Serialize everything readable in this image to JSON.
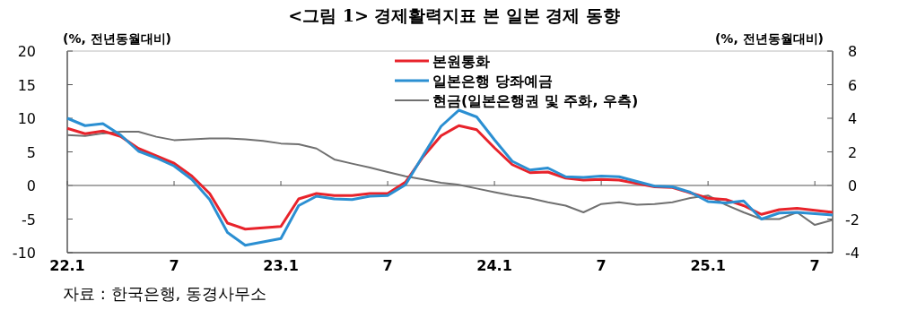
{
  "chart_data": {
    "type": "line",
    "title": "<그림 1> 경제활력지표 본 일본 경제 동향",
    "ylabel": "(%, 전년동월대비)",
    "y2label": "(%, 전년동월대비)",
    "annotations": [
      "자료 : 한국은행, 동경사무소"
    ],
    "categories": [
      "22.1",
      null,
      null,
      null,
      null,
      null,
      "7",
      null,
      null,
      null,
      null,
      null,
      "23.1",
      null,
      null,
      null,
      null,
      null,
      "7",
      null,
      null,
      null,
      null,
      null,
      "24.1",
      null,
      null,
      null,
      null,
      null,
      "7",
      null,
      null,
      null,
      null,
      null,
      "25.1",
      null,
      null,
      null,
      null,
      null,
      "7",
      null
    ],
    "series": [
      {
        "name": "본원통화",
        "color": "#e8232b",
        "values": [
          8.5,
          7.7,
          8.1,
          7.3,
          5.5,
          4.4,
          3.3,
          1.4,
          -1.2,
          -5.6,
          -6.5,
          -6.3,
          -6.1,
          -2.0,
          -1.2,
          -1.5,
          -1.5,
          -1.2,
          -1.2,
          0.5,
          4.3,
          7.4,
          8.9,
          8.3,
          5.6,
          3.1,
          1.9,
          2.0,
          1.1,
          0.8,
          0.9,
          0.8,
          0.3,
          -0.2,
          -0.3,
          -1.1,
          -1.9,
          -2.1,
          -3.0,
          -4.3,
          -3.6,
          -3.4,
          -3.7,
          -4.0
        ]
      },
      {
        "name": "일본은행 당좌예금",
        "color": "#2b8fd2",
        "values": [
          10.0,
          8.9,
          9.2,
          7.5,
          5.1,
          4.1,
          2.9,
          0.9,
          -2.1,
          -7.0,
          -8.9,
          -8.4,
          -7.9,
          -3.0,
          -1.6,
          -2.0,
          -2.1,
          -1.6,
          -1.5,
          0.1,
          4.5,
          8.8,
          11.2,
          10.2,
          6.8,
          3.6,
          2.3,
          2.6,
          1.3,
          1.2,
          1.4,
          1.3,
          0.6,
          -0.1,
          -0.2,
          -1.0,
          -2.4,
          -2.6,
          -2.3,
          -5.0,
          -4.1,
          -4.0,
          -4.2,
          -4.4
        ]
      },
      {
        "name": "현금(일본은행권 및 주화, 우측)",
        "color": "#707070",
        "axis": "y2",
        "values": [
          3.0,
          2.95,
          3.1,
          3.2,
          3.2,
          2.9,
          2.7,
          2.75,
          2.8,
          2.8,
          2.75,
          2.65,
          2.5,
          2.45,
          2.2,
          1.55,
          1.3,
          1.07,
          0.8,
          0.55,
          0.36,
          0.16,
          0.04,
          -0.18,
          -0.4,
          -0.6,
          -0.76,
          -1.0,
          -1.2,
          -1.6,
          -1.1,
          -1.0,
          -1.15,
          -1.1,
          -1.0,
          -0.75,
          -0.6,
          -1.15,
          -1.6,
          -2.0,
          -2.0,
          -1.6,
          -2.35,
          -2.05
        ]
      }
    ],
    "ylim": [
      -10,
      20
    ],
    "yticks": [
      -10,
      -5,
      0,
      5,
      10,
      15,
      20
    ],
    "y2lim": [
      -4,
      8
    ],
    "y2ticks": [
      -4,
      -2,
      0,
      2,
      4,
      6,
      8
    ],
    "ref_lines": [
      {
        "axis": "y",
        "value": 0,
        "color": "#8c8c8c"
      }
    ],
    "grid": false,
    "legend": "top",
    "marker": "none",
    "line_style": "solid"
  }
}
